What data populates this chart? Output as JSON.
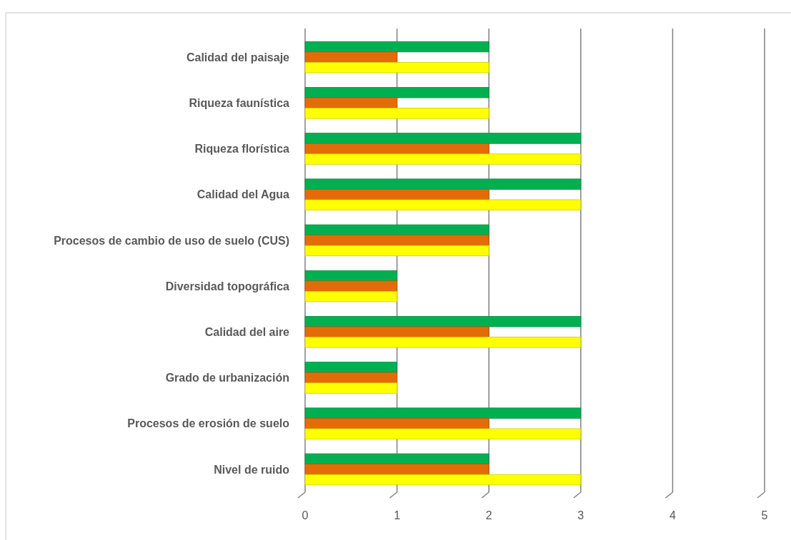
{
  "chart_data": {
    "type": "bar",
    "orientation": "horizontal",
    "categories": [
      "Calidad del paisaje",
      "Riqueza faunística",
      "Riqueza florística",
      "Calidad del Agua",
      "Procesos de cambio de uso de suelo (CUS)",
      "Diversidad topográfica",
      "Calidad del aire",
      "Grado de urbanización",
      "Procesos de erosión de suelo",
      "Nivel de ruido"
    ],
    "series": [
      {
        "color": "#00b050",
        "values": [
          2,
          2,
          3,
          3,
          2,
          1,
          3,
          1,
          3,
          2
        ]
      },
      {
        "color": "#e36c09",
        "values": [
          1,
          1,
          2,
          2,
          2,
          1,
          2,
          1,
          2,
          2
        ]
      },
      {
        "color": "#ffff00",
        "values": [
          2,
          2,
          3,
          3,
          2,
          1,
          3,
          1,
          3,
          3
        ]
      }
    ],
    "xlim": [
      0,
      5
    ],
    "xticks": [
      0,
      1,
      2,
      3,
      4,
      5
    ],
    "grid": "x"
  }
}
